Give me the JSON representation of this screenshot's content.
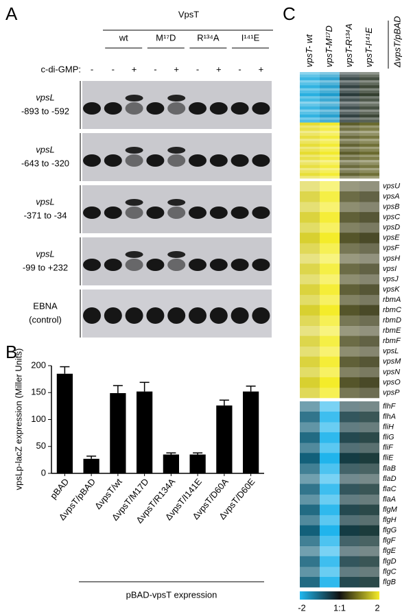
{
  "panel_a": {
    "label": "A",
    "group": "VpsT",
    "variants": [
      "wt",
      "M¹⁷D",
      "R¹³⁴A",
      "I¹⁴¹E"
    ],
    "ligand_label": "c-di-GMP:",
    "ligand": [
      "-",
      "-",
      "+",
      "-",
      "+",
      "-",
      "+",
      "-",
      "+"
    ],
    "probes": [
      {
        "name": "vpsL",
        "range": "-893 to -592"
      },
      {
        "name": "vpsL",
        "range": "-643 to -320"
      },
      {
        "name": "vpsL",
        "range": "-371 to -34"
      },
      {
        "name": "vpsL",
        "range": "-99 to +232"
      },
      {
        "name": "EBNA",
        "range": "(control)"
      }
    ]
  },
  "chart_data": {
    "type": "bar",
    "panel_label": "B",
    "ylabel": "vpsLp-lacZ expression (Miller Units)",
    "categories": [
      "pBAD",
      "ΔvpsT/pBAD",
      "ΔvpsT/wt",
      "ΔvpsT/M17D",
      "ΔvpsT/R134A",
      "ΔvpsT/I141E",
      "ΔvpsT/D60A",
      "ΔvpsT/D60E"
    ],
    "values": [
      185,
      27,
      149,
      152,
      35,
      35,
      126,
      152
    ],
    "errors": [
      13,
      5,
      14,
      17,
      3,
      3,
      10,
      10
    ],
    "color": "#000000",
    "ylim": [
      0,
      200
    ],
    "yticks": [
      0,
      50,
      100,
      150,
      200
    ],
    "group_label": "pBAD-vpsT expression"
  },
  "panel_c": {
    "label": "C",
    "columns": [
      "vpsT- wt",
      "vpsT-M¹⁷D",
      "vpsT-R¹³⁴A",
      "vpsT-I¹⁴¹E",
      "ΔvpsT/pBAD"
    ],
    "genes_upper": [
      "vpsU",
      "vpsA",
      "vpsB",
      "vpsC",
      "vpsD",
      "vpsE",
      "vpsF",
      "vpsH",
      "vpsI",
      "vpsJ",
      "vpsK",
      "rbmA",
      "rbmC",
      "rbmD",
      "rbmE",
      "rbmF",
      "vpsL",
      "vpsM",
      "vpsN",
      "vpsO",
      "vpsP"
    ],
    "genes_lower": [
      "flhF",
      "flhA",
      "fliH",
      "fliG",
      "fliF",
      "fliE",
      "flaB",
      "flaD",
      "flaC",
      "flaA",
      "flgM",
      "flgH",
      "flgG",
      "flgF",
      "flgE",
      "flgD",
      "flgC",
      "flgB"
    ],
    "scale": [
      "-2",
      "1:1",
      "2"
    ]
  }
}
